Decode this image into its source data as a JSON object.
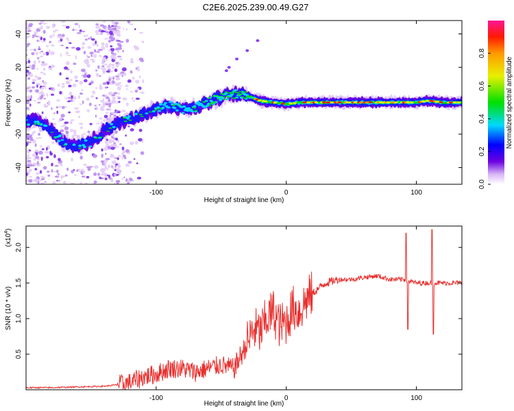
{
  "title": "C2E6.2025.239.00.49.G27",
  "chart_data": [
    {
      "type": "heatmap",
      "name": "spectrogram",
      "xlabel": "Height of straight line (km)",
      "ylabel": "Frequency (Hz)",
      "xlim": [
        -200,
        135
      ],
      "ylim": [
        -50,
        48
      ],
      "xticks": [
        -100,
        0,
        100
      ],
      "yticks": [
        -40,
        -20,
        0,
        20,
        40
      ],
      "ridge": {
        "x": [
          -198,
          -190,
          -180,
          -170,
          -160,
          -150,
          -140,
          -130,
          -120,
          -110,
          -100,
          -90,
          -80,
          -70,
          -60,
          -50,
          -40,
          -30,
          -20,
          -10,
          0,
          10,
          20,
          40,
          60,
          80,
          100,
          110,
          120,
          135
        ],
        "y": [
          -12,
          -12,
          -18,
          -26,
          -27,
          -25,
          -18,
          -14,
          -11,
          -8,
          -5,
          -3,
          -5,
          -4,
          -1,
          2,
          4,
          3,
          0,
          -1,
          -2,
          -1,
          -1,
          -1,
          -1,
          -1,
          -1,
          0,
          -1,
          -1
        ]
      },
      "colorbar": {
        "label": "Normalized spectral amplitude",
        "ticks": [
          0.0,
          0.2,
          0.4,
          0.6,
          0.8
        ],
        "range": [
          0,
          1
        ]
      }
    },
    {
      "type": "line",
      "name": "snr",
      "xlabel": "Height of straight line (km)",
      "ylabel": "SNR (10 * v/v)",
      "scale_label": "(x10",
      "scale_exp": "4",
      "line_color": "#e8302e",
      "xlim": [
        -200,
        135
      ],
      "ylim": [
        0,
        2.3
      ],
      "xticks": [
        -100,
        0,
        100
      ],
      "yticks": [
        0.5,
        1.0,
        1.5,
        2.0
      ],
      "series": [
        {
          "name": "SNR",
          "x": [
            -200,
            -180,
            -160,
            -140,
            -130,
            -120,
            -110,
            -100,
            -90,
            -80,
            -70,
            -60,
            -50,
            -40,
            -30,
            -25,
            -20,
            -15,
            -10,
            -5,
            0,
            5,
            10,
            15,
            20,
            30,
            40,
            50,
            60,
            70,
            80,
            90,
            100,
            110,
            120,
            130,
            135
          ],
          "y": [
            0.03,
            0.03,
            0.04,
            0.05,
            0.07,
            0.1,
            0.18,
            0.22,
            0.3,
            0.3,
            0.25,
            0.3,
            0.35,
            0.3,
            0.65,
            0.85,
            0.8,
            1.0,
            1.1,
            0.9,
            0.95,
            1.15,
            1.1,
            1.25,
            1.35,
            1.5,
            1.55,
            1.55,
            1.58,
            1.6,
            1.55,
            1.55,
            1.5,
            1.5,
            1.5,
            1.5,
            1.5
          ]
        }
      ],
      "spikes": [
        {
          "x": 92,
          "y": 2.2
        },
        {
          "x": 93.5,
          "y": 0.85
        },
        {
          "x": 112,
          "y": 2.25
        },
        {
          "x": 113,
          "y": 0.78
        }
      ]
    }
  ]
}
